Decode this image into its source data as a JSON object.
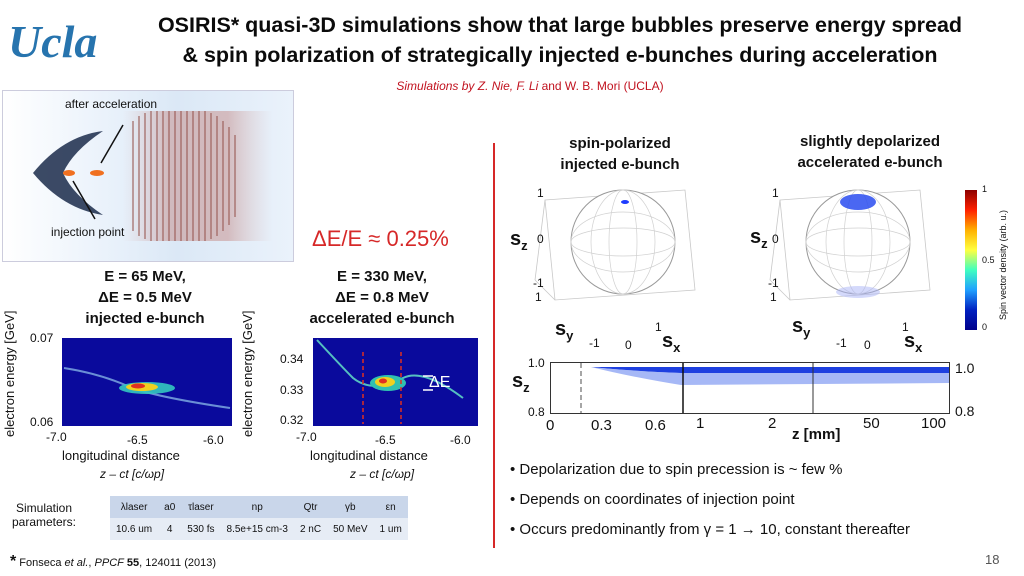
{
  "header": {
    "logo_text": "Ucla",
    "title_line1": "OSIRIS* quasi-3D simulations show that large bubbles preserve energy spread",
    "title_line2": "& spin polarization of strategically injected e-bunches during acceleration",
    "credit_prefix": "Simulations by ",
    "credit_names_italic": "Z. Nie, F. Li",
    "credit_suffix": " and W. B. Mori (UCLA)"
  },
  "sim_panel": {
    "after_label": "after acceleration",
    "injection_label": "injection point"
  },
  "energy_spread": "ΔE/E ≈ 0.25%",
  "left_plot": {
    "E_line": "E = 65 MeV,",
    "dE_line": "ΔE = 0.5 MeV",
    "name": "injected e-bunch",
    "ylabel": "electron energy [GeV]",
    "y_ticks": [
      "0.07",
      "0.06"
    ],
    "x_ticks": [
      "-7.0",
      "-6.5",
      "-6.0"
    ],
    "xlabel": "longitudinal distance",
    "xunit": "z – ct [c/ωp]"
  },
  "right_plot": {
    "E_line": "E = 330 MeV,",
    "dE_line": "ΔE = 0.8 MeV",
    "name": "accelerated e-bunch",
    "ylabel": "electron energy [GeV]",
    "y_ticks": [
      "0.34",
      "0.33",
      "0.32"
    ],
    "x_ticks": [
      "-7.0",
      "-6.5",
      "-6.0"
    ],
    "xlabel": "longitudinal distance",
    "xunit": "z – ct [c/ωp]",
    "delta_label": "ΔE"
  },
  "params": {
    "label": "Simulation parameters:",
    "headers": [
      "λlaser",
      "a0",
      "τlaser",
      "np",
      "Qtr",
      "γb",
      "εn"
    ],
    "values": [
      "10.6 um",
      "4",
      "530 fs",
      "8.5e+15 cm-3",
      "2 nC",
      "50 MeV",
      "1 um"
    ]
  },
  "spheres": {
    "left_title_1": "spin-polarized",
    "left_title_2": "injected e-bunch",
    "right_title_1": "slightly depolarized",
    "right_title_2": "accelerated e-bunch",
    "sz": "s",
    "sz_sub": "z",
    "sy": "s",
    "sy_sub": "y",
    "sx": "s",
    "sx_sub": "x",
    "tick_1": "1",
    "tick_0": "0",
    "tick_m1": "-1",
    "colorbar_label": "Spin vector density (arb. u.)",
    "colorbar_ticks": [
      "1",
      "0.5",
      "0"
    ]
  },
  "strip": {
    "y_top": "1.0",
    "y_bottom": "0.8",
    "right_top": "1.0",
    "right_bottom": "0.8",
    "x_ticks": [
      "0",
      "0.3",
      "0.6",
      "1",
      "2",
      "50",
      "100"
    ],
    "xlabel": "z [mm]"
  },
  "bullets": [
    "• Depolarization due to spin precession is ~ few %",
    "• Depends on coordinates of injection point",
    "• Occurs predominantly from γ = 1 → 10, constant thereafter"
  ],
  "footnote": {
    "star": "*",
    "text1": " Fonseca ",
    "etal": "et al.",
    "text2": ", ",
    "journal": "PPCF",
    "vol": " 55",
    "text3": ", 124011 (2013)"
  },
  "page_number": "18",
  "colors": {
    "accent_red": "#d62828",
    "ucla_blue": "#2774ae"
  }
}
